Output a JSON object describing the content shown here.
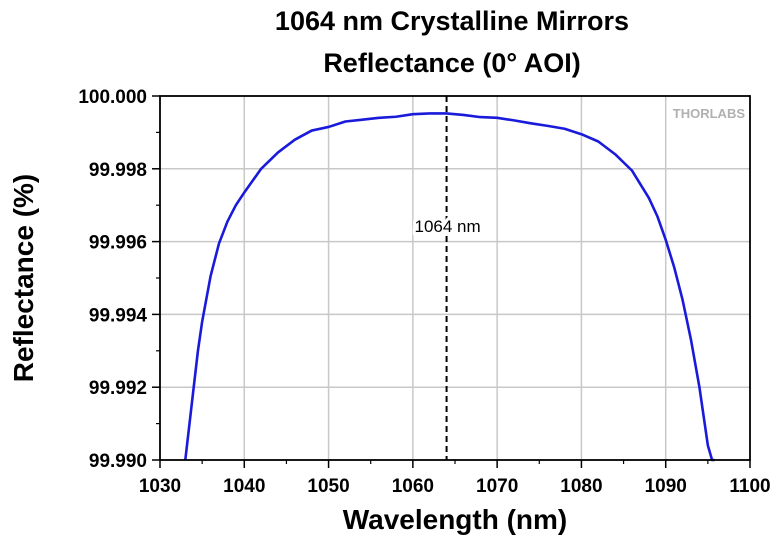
{
  "chart_data": {
    "type": "line",
    "title": "1064 nm Crystalline Mirrors",
    "subtitle": "Reflectance (0° AOI)",
    "xlabel": "Wavelength (nm)",
    "ylabel": "Reflectance (%)",
    "xlim": [
      1030,
      1100
    ],
    "ylim": [
      99.99,
      100.0
    ],
    "x_ticks": [
      "1030",
      "1040",
      "1050",
      "1060",
      "1070",
      "1080",
      "1090",
      "1100"
    ],
    "y_ticks": [
      "99.990",
      "99.992",
      "99.994",
      "99.996",
      "99.998",
      "100.000"
    ],
    "grid": true,
    "legend": "none",
    "series": [
      {
        "color": "#1a1adb",
        "x": [
          1033.0,
          1033.5,
          1034.0,
          1034.5,
          1035.0,
          1036.0,
          1037.0,
          1038.0,
          1039.0,
          1040.0,
          1042.0,
          1044.0,
          1046.0,
          1048.0,
          1050.0,
          1052.0,
          1054.0,
          1056.0,
          1058.0,
          1060.0,
          1062.0,
          1064.0,
          1066.0,
          1068.0,
          1070.0,
          1072.0,
          1074.0,
          1076.0,
          1078.0,
          1080.0,
          1082.0,
          1084.0,
          1086.0,
          1088.0,
          1089.0,
          1090.0,
          1091.0,
          1092.0,
          1093.0,
          1094.0,
          1094.5,
          1095.0,
          1095.5,
          1095.8
        ],
        "y": [
          99.99,
          99.991,
          99.992,
          99.993,
          99.9938,
          99.99505,
          99.99595,
          99.99655,
          99.997,
          99.99735,
          99.998,
          99.99845,
          99.9988,
          99.99905,
          99.99915,
          99.9993,
          99.99935,
          99.9994,
          99.99943,
          99.9995,
          99.99952,
          99.99952,
          99.99948,
          99.99942,
          99.9994,
          99.99933,
          99.99925,
          99.99918,
          99.9991,
          99.99895,
          99.99875,
          99.9984,
          99.99795,
          99.9972,
          99.9967,
          99.99605,
          99.9953,
          99.9944,
          99.9933,
          99.992,
          99.9912,
          99.9904,
          99.9897,
          99.9892
        ]
      }
    ],
    "annotation": {
      "label": "1064 nm",
      "x": 1064
    }
  },
  "watermark": "THORLABS"
}
